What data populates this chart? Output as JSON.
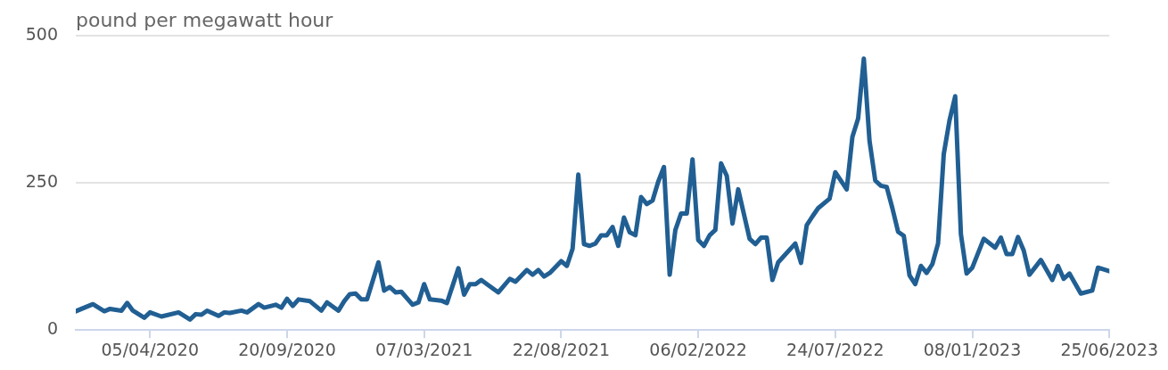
{
  "chart_data": {
    "type": "line",
    "ylabel": "pound per megawatt hour",
    "x": [
      "2020-01-05",
      "2020-01-26",
      "2020-02-09",
      "2020-02-16",
      "2020-03-01",
      "2020-03-08",
      "2020-03-15",
      "2020-03-29",
      "2020-04-05",
      "2020-04-19",
      "2020-05-10",
      "2020-05-24",
      "2020-05-31",
      "2020-06-07",
      "2020-06-14",
      "2020-06-28",
      "2020-07-05",
      "2020-07-12",
      "2020-07-26",
      "2020-08-02",
      "2020-08-16",
      "2020-08-23",
      "2020-09-06",
      "2020-09-13",
      "2020-09-20",
      "2020-09-27",
      "2020-10-04",
      "2020-10-18",
      "2020-11-01",
      "2020-11-08",
      "2020-11-22",
      "2020-11-29",
      "2020-12-06",
      "2020-12-13",
      "2020-12-20",
      "2020-12-27",
      "2021-01-10",
      "2021-01-17",
      "2021-01-24",
      "2021-01-31",
      "2021-02-07",
      "2021-02-21",
      "2021-02-28",
      "2021-03-07",
      "2021-03-14",
      "2021-03-28",
      "2021-04-04",
      "2021-04-18",
      "2021-04-25",
      "2021-05-02",
      "2021-05-09",
      "2021-05-16",
      "2021-05-23",
      "2021-06-06",
      "2021-06-20",
      "2021-06-27",
      "2021-07-11",
      "2021-07-18",
      "2021-07-25",
      "2021-08-01",
      "2021-08-08",
      "2021-08-22",
      "2021-08-29",
      "2021-09-05",
      "2021-09-12",
      "2021-09-19",
      "2021-09-26",
      "2021-10-03",
      "2021-10-10",
      "2021-10-17",
      "2021-10-24",
      "2021-10-31",
      "2021-11-07",
      "2021-11-14",
      "2021-11-21",
      "2021-11-28",
      "2021-12-05",
      "2021-12-12",
      "2021-12-19",
      "2021-12-26",
      "2022-01-02",
      "2022-01-09",
      "2022-01-16",
      "2022-01-23",
      "2022-01-30",
      "2022-02-06",
      "2022-02-13",
      "2022-02-20",
      "2022-02-27",
      "2022-03-06",
      "2022-03-13",
      "2022-03-20",
      "2022-03-27",
      "2022-04-10",
      "2022-04-17",
      "2022-04-24",
      "2022-05-01",
      "2022-05-08",
      "2022-05-15",
      "2022-06-05",
      "2022-06-12",
      "2022-06-19",
      "2022-06-26",
      "2022-07-03",
      "2022-07-17",
      "2022-07-24",
      "2022-08-07",
      "2022-08-14",
      "2022-08-21",
      "2022-08-28",
      "2022-09-04",
      "2022-09-11",
      "2022-09-18",
      "2022-09-25",
      "2022-10-02",
      "2022-10-09",
      "2022-10-16",
      "2022-10-23",
      "2022-10-30",
      "2022-11-06",
      "2022-11-13",
      "2022-11-20",
      "2022-11-27",
      "2022-12-04",
      "2022-12-11",
      "2022-12-18",
      "2022-12-25",
      "2023-01-01",
      "2023-01-08",
      "2023-01-22",
      "2023-02-05",
      "2023-02-12",
      "2023-02-19",
      "2023-02-26",
      "2023-03-05",
      "2023-03-12",
      "2023-03-19",
      "2023-04-02",
      "2023-04-16",
      "2023-04-23",
      "2023-04-30",
      "2023-05-07",
      "2023-05-21",
      "2023-06-04",
      "2023-06-11",
      "2023-06-25"
    ],
    "series": [
      {
        "color": "#215f93",
        "values": [
          32,
          44,
          32,
          36,
          33,
          46,
          33,
          21,
          30,
          23,
          30,
          18,
          27,
          26,
          33,
          24,
          30,
          29,
          33,
          30,
          44,
          38,
          43,
          38,
          53,
          41,
          52,
          49,
          33,
          47,
          33,
          49,
          61,
          62,
          52,
          52,
          115,
          67,
          73,
          64,
          65,
          43,
          47,
          78,
          52,
          50,
          46,
          105,
          60,
          78,
          78,
          85,
          78,
          64,
          87,
          82,
          102,
          94,
          102,
          91,
          97,
          117,
          109,
          138,
          264,
          146,
          143,
          147,
          161,
          161,
          175,
          143,
          191,
          166,
          161,
          226,
          214,
          220,
          252,
          277,
          94,
          170,
          198,
          198,
          290,
          153,
          143,
          161,
          170,
          283,
          262,
          181,
          239,
          155,
          146,
          157,
          157,
          85,
          115,
          147,
          114,
          178,
          193,
          207,
          223,
          268,
          239,
          328,
          359,
          461,
          321,
          254,
          245,
          243,
          207,
          167,
          160,
          93,
          78,
          109,
          97,
          112,
          147,
          299,
          356,
          397,
          163,
          96,
          106,
          155,
          140,
          157,
          129,
          129,
          158,
          135,
          94,
          119,
          85,
          109,
          87,
          96,
          62,
          67,
          106,
          100
        ]
      }
    ],
    "xlim": [
      "2020-01-05",
      "2023-06-25"
    ],
    "xticks": [
      {
        "value": "2020-04-05",
        "label": "05/04/2020"
      },
      {
        "value": "2020-09-20",
        "label": "20/09/2020"
      },
      {
        "value": "2021-03-07",
        "label": "07/03/2021"
      },
      {
        "value": "2021-08-22",
        "label": "22/08/2021"
      },
      {
        "value": "2022-02-06",
        "label": "06/02/2022"
      },
      {
        "value": "2022-07-24",
        "label": "24/07/2022"
      },
      {
        "value": "2023-01-08",
        "label": "08/01/2023"
      },
      {
        "value": "2023-06-25",
        "label": "25/06/2023"
      }
    ],
    "ylim": [
      0,
      500
    ],
    "yticks": [
      0,
      250,
      500
    ],
    "grid": "y",
    "legend": false,
    "marker": "none",
    "line_style": "solid"
  }
}
